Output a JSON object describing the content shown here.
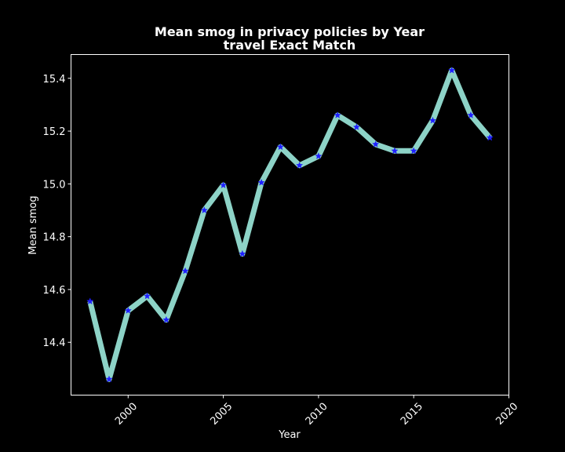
{
  "chart_data": {
    "type": "line",
    "title_line1": "Mean smog in privacy policies by Year",
    "title_line2": "travel Exact Match",
    "xlabel": "Year",
    "ylabel": "Mean smog",
    "xlim": [
      1997,
      2020
    ],
    "ylim": [
      14.2,
      15.49
    ],
    "xticks": [
      2000,
      2005,
      2010,
      2015,
      2020
    ],
    "yticks": [
      14.4,
      14.6,
      14.8,
      15.0,
      15.2,
      15.4
    ],
    "ytick_labels": [
      "14.4",
      "14.6",
      "14.8",
      "15.0",
      "15.2",
      "15.4"
    ],
    "grid": false,
    "x": [
      1998,
      1999,
      2000,
      2001,
      2002,
      2003,
      2004,
      2005,
      2006,
      2007,
      2008,
      2009,
      2010,
      2011,
      2012,
      2013,
      2014,
      2015,
      2016,
      2017,
      2018,
      2019
    ],
    "series": [
      {
        "values": [
          14.555,
          14.26,
          14.52,
          14.575,
          14.485,
          14.67,
          14.9,
          14.995,
          14.735,
          15.005,
          15.14,
          15.07,
          15.105,
          15.26,
          15.215,
          15.15,
          15.125,
          15.125,
          15.24,
          15.43,
          15.26,
          15.175
        ],
        "line_color": "#8dd3c7",
        "marker": "star",
        "marker_color": "#1f1fff"
      }
    ]
  },
  "colors": {
    "background": "#000000",
    "axes": "#ffffff",
    "line": "#8dd3c7",
    "marker": "#1f1fff"
  }
}
